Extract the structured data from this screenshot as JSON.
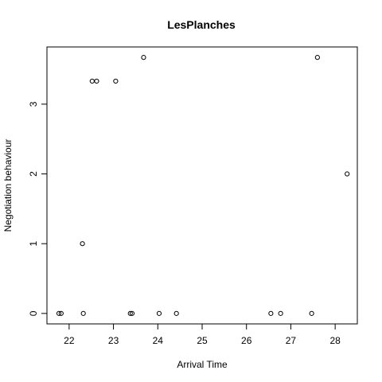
{
  "chart_data": {
    "type": "scatter",
    "title": "LesPlanches",
    "xlabel": "Arrival Time",
    "ylabel": "Negotiation behaviour",
    "xlim": [
      21.5,
      28.5
    ],
    "ylim": [
      -0.15,
      3.82
    ],
    "x_ticks": [
      22,
      23,
      24,
      25,
      26,
      27,
      28
    ],
    "y_ticks": [
      0,
      1,
      2,
      3
    ],
    "grid": false,
    "legend": "none",
    "points": [
      {
        "x": 21.77,
        "y": 0
      },
      {
        "x": 21.82,
        "y": 0
      },
      {
        "x": 22.3,
        "y": 1
      },
      {
        "x": 22.32,
        "y": 0
      },
      {
        "x": 22.52,
        "y": 3.33
      },
      {
        "x": 22.62,
        "y": 3.33
      },
      {
        "x": 23.05,
        "y": 3.33
      },
      {
        "x": 23.38,
        "y": 0
      },
      {
        "x": 23.42,
        "y": 0
      },
      {
        "x": 23.68,
        "y": 3.67
      },
      {
        "x": 24.03,
        "y": 0
      },
      {
        "x": 24.42,
        "y": 0
      },
      {
        "x": 26.55,
        "y": 0
      },
      {
        "x": 26.77,
        "y": 0
      },
      {
        "x": 27.47,
        "y": 0
      },
      {
        "x": 27.6,
        "y": 3.67
      },
      {
        "x": 28.27,
        "y": 2
      }
    ]
  }
}
